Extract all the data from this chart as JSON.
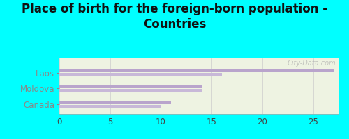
{
  "title": "Place of birth for the foreign-born population -\nCountries",
  "categories": [
    "Canada",
    "Moldova",
    "Laos"
  ],
  "values1": [
    11.0,
    14.0,
    27.0
  ],
  "values2": [
    10.0,
    14.0,
    16.0
  ],
  "bar_color1": "#b9a4cc",
  "bar_color2": "#c8b8d8",
  "xlim": [
    0,
    27.5
  ],
  "xticks": [
    0,
    5,
    10,
    15,
    20,
    25
  ],
  "background_outer": "#00ffff",
  "background_inner": "#eef3e2",
  "title_fontsize": 12,
  "tick_fontsize": 8.5,
  "watermark": "City-Data.com"
}
